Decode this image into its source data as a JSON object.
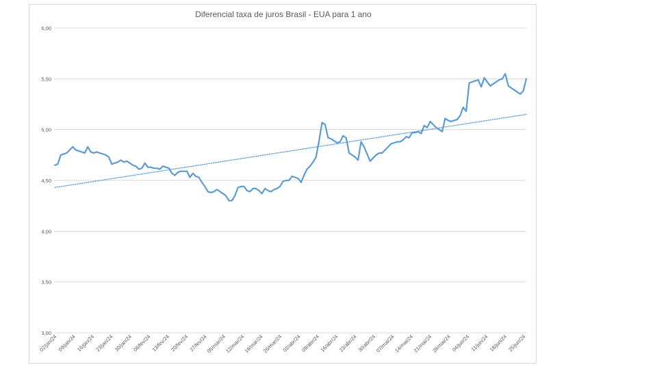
{
  "chart_data": {
    "type": "line",
    "title": "Diferencial taxa de juros Brasil - EUA para 1 ano",
    "xlabel": "",
    "ylabel": "",
    "ylim": [
      3.0,
      6.0
    ],
    "y_ticks": [
      "3,00",
      "3,50",
      "4,00",
      "4,50",
      "5,00",
      "5,50",
      "6,00"
    ],
    "x_tick_labels": [
      "02/jan/24",
      "09/jan/24",
      "16/jan/24",
      "23/jan/24",
      "30/jan/24",
      "06/fev/24",
      "13/fev/24",
      "20/fev/24",
      "27/fev/24",
      "05/mar/24",
      "12/mar/24",
      "19/mar/24",
      "26/mar/24",
      "02/abr/24",
      "09/abr/24",
      "16/abr/24",
      "23/abr/24",
      "30/abr/24",
      "07/mai/24",
      "14/mai/24",
      "21/mai/24",
      "28/mai/24",
      "04/jun/24",
      "11/jun/24",
      "18/jun/24",
      "25/jun/24"
    ],
    "grid": true,
    "series": [
      {
        "color": "#5b9bd5",
        "style": "solid",
        "values": [
          4.65,
          4.66,
          4.75,
          4.76,
          4.77,
          4.8,
          4.83,
          4.8,
          4.79,
          4.78,
          4.77,
          4.83,
          4.78,
          4.77,
          4.78,
          4.77,
          4.76,
          4.75,
          4.73,
          4.66,
          4.67,
          4.68,
          4.7,
          4.68,
          4.69,
          4.67,
          4.65,
          4.64,
          4.61,
          4.62,
          4.67,
          4.63,
          4.63,
          4.62,
          4.62,
          4.61,
          4.64,
          4.63,
          4.62,
          4.57,
          4.55,
          4.58,
          4.59,
          4.59,
          4.59,
          4.53,
          4.57,
          4.54,
          4.53,
          4.48,
          4.44,
          4.39,
          4.38,
          4.39,
          4.41,
          4.39,
          4.37,
          4.35,
          4.3,
          4.3,
          4.35,
          4.43,
          4.44,
          4.44,
          4.4,
          4.39,
          4.42,
          4.42,
          4.4,
          4.37,
          4.42,
          4.4,
          4.39,
          4.41,
          4.42,
          4.44,
          4.49,
          4.5,
          4.5,
          4.54,
          4.53,
          4.52,
          4.48,
          4.55,
          4.61,
          4.64,
          4.68,
          4.73,
          4.89,
          5.07,
          5.05,
          4.92,
          4.91,
          4.89,
          4.87,
          4.88,
          4.94,
          4.92,
          4.77,
          4.75,
          4.73,
          4.7,
          4.88,
          4.83,
          4.76,
          4.69,
          4.72,
          4.75,
          4.77,
          4.77,
          4.8,
          4.83,
          4.86,
          4.87,
          4.88,
          4.88,
          4.9,
          4.93,
          4.92,
          4.97,
          4.97,
          4.98,
          4.96,
          5.04,
          5.02,
          5.08,
          5.05,
          5.02,
          5.0,
          4.98,
          5.11,
          5.09,
          5.08,
          5.09,
          5.1,
          5.14,
          5.22,
          5.18,
          5.46,
          5.47,
          5.48,
          5.49,
          5.42,
          5.51,
          5.47,
          5.43,
          5.45,
          5.47,
          5.49,
          5.5,
          5.55,
          5.43,
          5.41,
          5.39,
          5.37,
          5.35,
          5.38,
          5.5
        ]
      },
      {
        "color": "#5b9bd5",
        "style": "dotted",
        "values": [
          4.43,
          5.15
        ]
      }
    ]
  }
}
